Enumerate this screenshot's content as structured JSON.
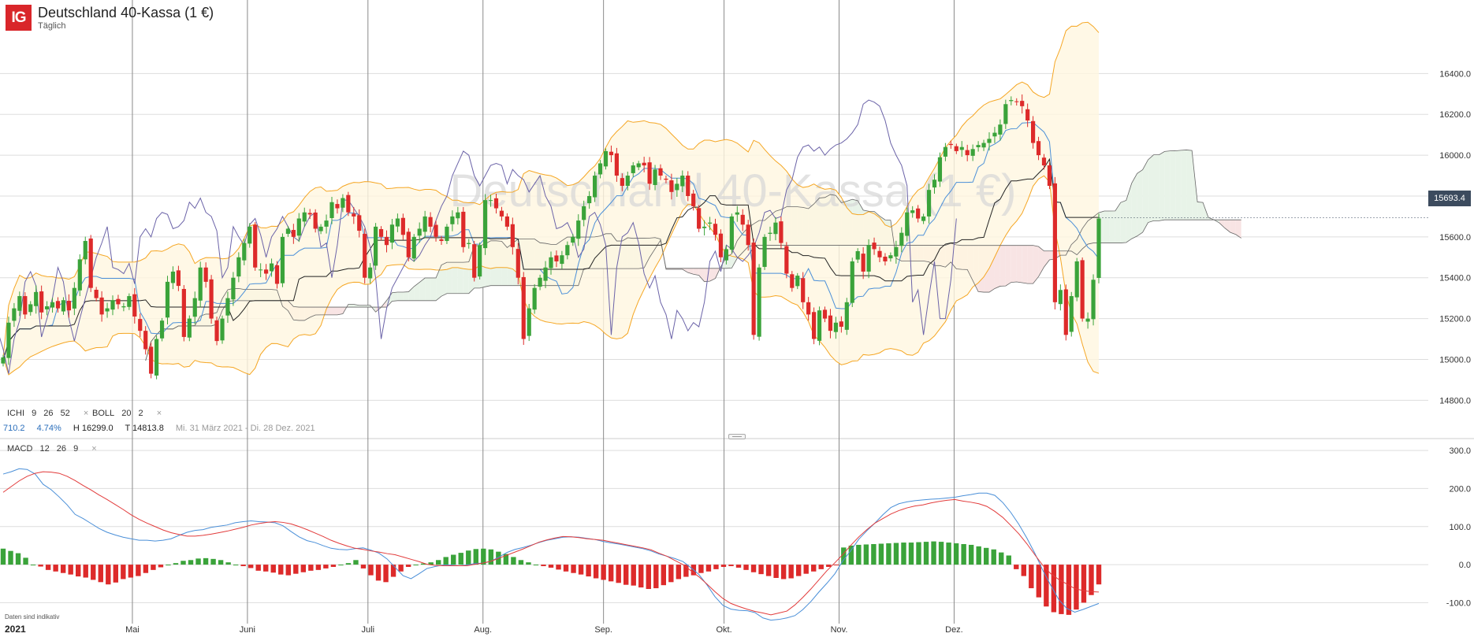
{
  "header": {
    "logo": "IG",
    "title": "Deutschland 40-Kassa (1 €)",
    "subtitle": "Täglich",
    "watermark": "Deutschland 40-Kassa (1 €)"
  },
  "indicators": {
    "ichi": {
      "name": "ICHI",
      "params": [
        "9",
        "26",
        "52"
      ],
      "close": "×"
    },
    "boll": {
      "name": "BOLL",
      "params": [
        "20",
        "2"
      ],
      "close": "×"
    },
    "macd": {
      "name": "MACD",
      "params": [
        "12",
        "26",
        "9"
      ],
      "close": "×"
    }
  },
  "readout": {
    "change": "710.2",
    "pct": "4.74%",
    "high": "H 16299.0",
    "low": "T 14813.8",
    "range": "Mi. 31 März 2021 - Di. 28 Dez. 2021"
  },
  "footer": {
    "note": "Daten sind indikativ",
    "year": "2021"
  },
  "price_label": "15693.4",
  "colors": {
    "up": "#3aa33a",
    "down": "#dd2a2a",
    "tenkan": "#4a8fd8",
    "kijun": "#222222",
    "chikou": "#6b63a8",
    "senkou": "#666666",
    "boll": "#f5a623",
    "macd": "#4a8fd8",
    "signal": "#e23b3b",
    "cloud_up": "#e8f3e8",
    "cloud_down": "#f8e4e4",
    "boll_fill": "#fff6e0",
    "grid": "#dddddd",
    "vgrid": "#8a8a8a"
  },
  "chart_data": [
    {
      "type": "candlestick",
      "title": "Deutschland 40-Kassa (1 €)",
      "interval": "Täglich",
      "y_ticks": [
        "14800.0",
        "15000.0",
        "15200.0",
        "15400.0",
        "15600.0",
        "15800.0",
        "16000.0",
        "16200.0",
        "16400.0"
      ],
      "ylim": [
        14620,
        16760
      ],
      "x_labels": [
        "2021",
        "Mai",
        "Juni",
        "Juli",
        "Aug.",
        "Sep.",
        "Okt.",
        "Nov.",
        "Dez."
      ],
      "last_price": 15693.4,
      "closes": [
        15010,
        15180,
        15250,
        15310,
        15220,
        15270,
        15330,
        15230,
        15260,
        15280,
        15250,
        15290,
        15240,
        15350,
        15490,
        15580,
        15350,
        15300,
        15220,
        15250,
        15290,
        15270,
        15260,
        15310,
        15210,
        15140,
        15050,
        14930,
        15100,
        15190,
        15380,
        15430,
        15360,
        15110,
        15200,
        15300,
        15450,
        15380,
        15200,
        15090,
        15200,
        15300,
        15400,
        15500,
        15570,
        15650,
        15450,
        15440,
        15420,
        15470,
        15370,
        15600,
        15640,
        15600,
        15690,
        15720,
        15710,
        15640,
        15650,
        15680,
        15770,
        15740,
        15790,
        15720,
        15700,
        15630,
        15400,
        15450,
        15650,
        15600,
        15560,
        15660,
        15690,
        15610,
        15500,
        15600,
        15640,
        15700,
        15650,
        15600,
        15580,
        15650,
        15700,
        15720,
        15550,
        15570,
        15400,
        15560,
        15780,
        15780,
        15740,
        15700,
        15650,
        15550,
        15400,
        15100,
        15250,
        15350,
        15400,
        15450,
        15500,
        15480,
        15510,
        15560,
        15600,
        15680,
        15750,
        15800,
        15900,
        15960,
        16020,
        16000,
        15900,
        15850,
        15900,
        15950,
        15960,
        15950,
        15860,
        15930,
        15900,
        15880,
        15820,
        15860,
        15900,
        15800,
        15750,
        15640,
        15650,
        15670,
        15610,
        15500,
        15540,
        15700,
        15720,
        15660,
        15560,
        15120,
        15450,
        15600,
        15620,
        15670,
        15570,
        15420,
        15350,
        15410,
        15280,
        15220,
        15100,
        15240,
        15200,
        15140,
        15180,
        15160,
        15280,
        15480,
        15530,
        15430,
        15560,
        15540,
        15500,
        15480,
        15510,
        15550,
        15620,
        15720,
        15730,
        15690,
        15700,
        15830,
        15880,
        15990,
        16040,
        16050,
        16020,
        16040,
        16000,
        16030,
        16050,
        16060,
        16080,
        16110,
        16150,
        16250,
        16270,
        16260,
        16240,
        16170,
        16060,
        16000,
        15950,
        15850,
        15280,
        15340,
        15120,
        15310,
        15480,
        15200,
        15200,
        15390,
        15690
      ]
    },
    {
      "type": "line",
      "title": "MACD",
      "params": [
        "12",
        "26",
        "9"
      ],
      "y_ticks": [
        "-100.0",
        "0.0",
        "100.0",
        "200.0",
        "300.0"
      ],
      "ylim": [
        -155,
        325
      ],
      "series": [
        {
          "name": "MACD",
          "values": [
            238,
            244,
            252,
            250,
            238,
            211,
            197,
            178,
            157,
            132,
            121,
            108,
            95,
            85,
            78,
            72,
            68,
            64,
            64,
            62,
            64,
            68,
            77,
            85,
            90,
            92,
            98,
            101,
            104,
            110,
            113,
            115,
            113,
            112,
            110,
            102,
            87,
            73,
            63,
            58,
            50,
            43,
            40,
            39,
            42,
            44,
            38,
            30,
            15,
            -7,
            -29,
            -37,
            -24,
            -10,
            -5,
            -1,
            -1,
            -3,
            -1,
            3,
            4,
            9,
            20,
            32,
            40,
            45,
            51,
            58,
            64,
            68,
            72,
            73,
            72,
            69,
            66,
            61,
            57,
            54,
            50,
            46,
            42,
            36,
            28,
            22,
            16,
            8,
            -8,
            -26,
            -53,
            -84,
            -107,
            -117,
            -120,
            -121,
            -126,
            -140,
            -146,
            -144,
            -140,
            -134,
            -118,
            -97,
            -72,
            -49,
            -24,
            10,
            37,
            67,
            89,
            109,
            131,
            150,
            160,
            165,
            168,
            170,
            172,
            173,
            175,
            177,
            181,
            184,
            188,
            188,
            182,
            163,
            137,
            106,
            70,
            30,
            -15,
            -55,
            -92,
            -115,
            -125,
            -118,
            -110,
            -102
          ]
        },
        {
          "name": "Signal",
          "values": [
            190,
            205,
            220,
            232,
            240,
            244,
            243,
            240,
            232,
            221,
            208,
            196,
            183,
            171,
            158,
            145,
            131,
            119,
            109,
            100,
            91,
            84,
            79,
            75,
            75,
            77,
            80,
            84,
            88,
            93,
            98,
            104,
            108,
            111,
            113,
            111,
            107,
            100,
            92,
            83,
            74,
            64,
            56,
            49,
            43,
            40,
            36,
            33,
            29,
            26,
            20,
            14,
            8,
            1,
            -2,
            -3,
            -3,
            -3,
            -3,
            1,
            4,
            9,
            17,
            25,
            33,
            41,
            50,
            59,
            65,
            70,
            74,
            73,
            71,
            68,
            66,
            64,
            60,
            56,
            52,
            48,
            44,
            39,
            30,
            22,
            11,
            0,
            -16,
            -32,
            -51,
            -71,
            -89,
            -102,
            -110,
            -117,
            -123,
            -127,
            -132,
            -127,
            -122,
            -106,
            -86,
            -64,
            -40,
            -16,
            5,
            27,
            51,
            73,
            92,
            109,
            121,
            133,
            142,
            149,
            154,
            157,
            162,
            166,
            169,
            171,
            167,
            164,
            160,
            153,
            140,
            124,
            103,
            81,
            55,
            26,
            -2,
            -24,
            -39,
            -51,
            -63,
            -68,
            -71,
            -72
          ]
        }
      ],
      "histogram_bars": [
        42,
        36,
        30,
        18,
        0,
        -5,
        -14,
        -18,
        -22,
        -26,
        -31,
        -34,
        -40,
        -46,
        -52,
        -47,
        -38,
        -34,
        -30,
        -22,
        -14,
        -7,
        0,
        4,
        10,
        12,
        16,
        17,
        15,
        12,
        6,
        0,
        -4,
        -9,
        -16,
        -18,
        -21,
        -26,
        -28,
        -24,
        -20,
        -16,
        -14,
        -10,
        -6,
        0,
        4,
        12,
        -10,
        -28,
        -42,
        -46,
        -32,
        -18,
        -6,
        0,
        3,
        6,
        12,
        20,
        26,
        31,
        37,
        41,
        42,
        40,
        34,
        28,
        20,
        12,
        6,
        0,
        -4,
        -8,
        -13,
        -18,
        -22,
        -26,
        -31,
        -36,
        -40,
        -44,
        -48,
        -53,
        -55,
        -60,
        -64,
        -62,
        -54,
        -46,
        -38,
        -32,
        -28,
        -22,
        -18,
        -12,
        -6,
        -4,
        -8,
        -14,
        -20,
        -25,
        -30,
        -35,
        -38,
        -36,
        -30,
        -24,
        -18,
        -12,
        -6,
        -2,
        45,
        50,
        52,
        53,
        54,
        55,
        56,
        57,
        58,
        58,
        59,
        60,
        61,
        60,
        58,
        56,
        54,
        52,
        48,
        44,
        40,
        32,
        24,
        -12,
        -30,
        -62,
        -86,
        -110,
        -125,
        -130,
        -132,
        -118,
        -100,
        -80,
        -52
      ]
    }
  ]
}
